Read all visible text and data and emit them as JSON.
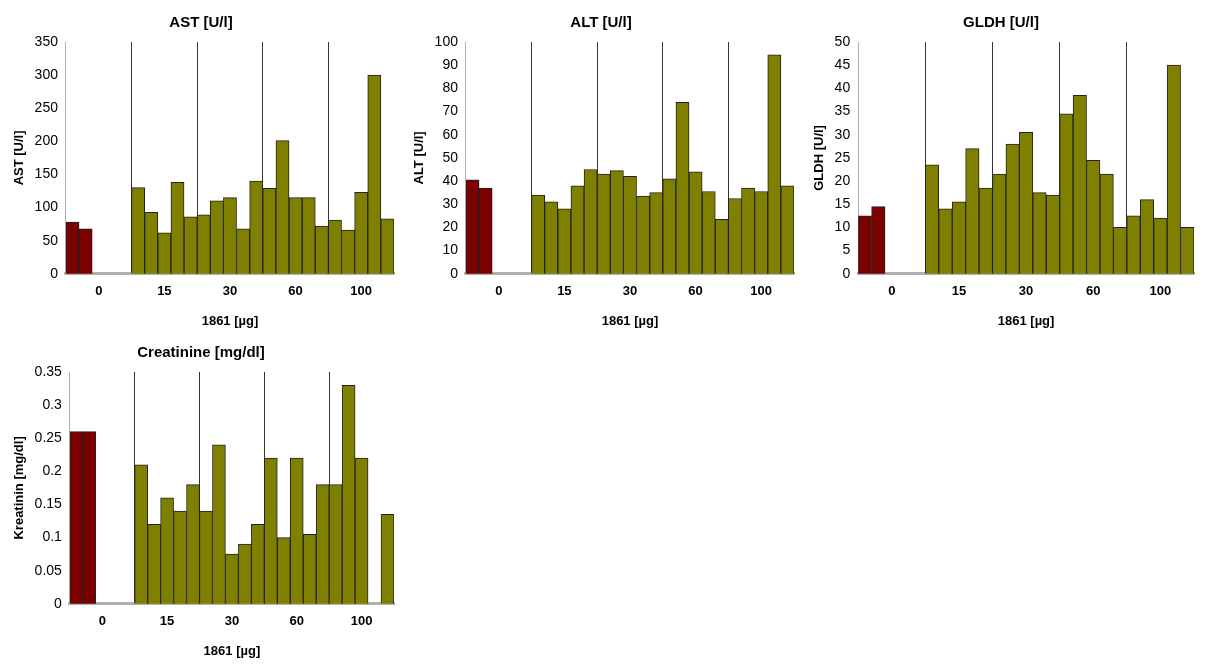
{
  "chart_data": [
    {
      "type": "bar",
      "title": "AST [U/l]",
      "xlabel": "1861 [µg]",
      "ylabel": "AST [U/l]",
      "categories": [
        null,
        null,
        "0",
        null,
        null,
        null,
        null,
        "15",
        null,
        null,
        null,
        null,
        "30",
        null,
        null,
        null,
        null,
        "60",
        null,
        null,
        null,
        null,
        "100",
        null,
        null
      ],
      "values": [
        78,
        68,
        null,
        null,
        null,
        130,
        93,
        62,
        138,
        86,
        89,
        110,
        115,
        68,
        140,
        129,
        201,
        115,
        115,
        72,
        81,
        66,
        123,
        300,
        83
      ],
      "colors": [
        "#7b0000",
        "#7b0000",
        "#7b0000",
        "#7b0000",
        "#7b0000",
        "#808000",
        "#808000",
        "#808000",
        "#808000",
        "#808000",
        "#808000",
        "#808000",
        "#808000",
        "#808000",
        "#808000",
        "#808000",
        "#808000",
        "#808000",
        "#808000",
        "#808000",
        "#808000",
        "#808000",
        "#808000",
        "#808000",
        "#808000"
      ],
      "ylim": [
        0,
        350
      ],
      "yticks": [
        0,
        50,
        100,
        150,
        200,
        250,
        300,
        350
      ]
    },
    {
      "type": "bar",
      "title": "ALT [U/l]",
      "xlabel": "1861 [µg]",
      "ylabel": "ALT [U/l]",
      "categories": [
        null,
        null,
        "0",
        null,
        null,
        null,
        null,
        "15",
        null,
        null,
        null,
        null,
        "30",
        null,
        null,
        null,
        null,
        "60",
        null,
        null,
        null,
        null,
        "100",
        null,
        null
      ],
      "values": [
        40.5,
        37,
        null,
        null,
        null,
        34,
        31,
        28,
        38,
        45,
        43,
        44.5,
        42,
        33.5,
        35,
        41,
        74,
        44,
        35.5,
        23.5,
        32.5,
        37,
        35.5,
        94.5,
        38
      ],
      "colors": [
        "#7b0000",
        "#7b0000",
        "#7b0000",
        "#7b0000",
        "#7b0000",
        "#808000",
        "#808000",
        "#808000",
        "#808000",
        "#808000",
        "#808000",
        "#808000",
        "#808000",
        "#808000",
        "#808000",
        "#808000",
        "#808000",
        "#808000",
        "#808000",
        "#808000",
        "#808000",
        "#808000",
        "#808000",
        "#808000",
        "#808000"
      ],
      "ylim": [
        0,
        100
      ],
      "yticks": [
        0,
        10,
        20,
        30,
        40,
        50,
        60,
        70,
        80,
        90,
        100
      ]
    },
    {
      "type": "bar",
      "title": "GLDH [U/l]",
      "xlabel": "1861 [µg]",
      "ylabel": "GLDH [U/l]",
      "categories": [
        null,
        null,
        "0",
        null,
        null,
        null,
        null,
        "15",
        null,
        null,
        null,
        null,
        "30",
        null,
        null,
        null,
        null,
        "60",
        null,
        null,
        null,
        null,
        "100",
        null,
        null
      ],
      "values": [
        12.5,
        14.5,
        null,
        null,
        null,
        23.5,
        14,
        15.5,
        27,
        18.5,
        21.5,
        28,
        30.5,
        17.5,
        17,
        34.5,
        38.5,
        24.5,
        21.5,
        10,
        12.5,
        16,
        12,
        45,
        10
      ],
      "colors": [
        "#7b0000",
        "#7b0000",
        "#7b0000",
        "#7b0000",
        "#7b0000",
        "#808000",
        "#808000",
        "#808000",
        "#808000",
        "#808000",
        "#808000",
        "#808000",
        "#808000",
        "#808000",
        "#808000",
        "#808000",
        "#808000",
        "#808000",
        "#808000",
        "#808000",
        "#808000",
        "#808000",
        "#808000",
        "#808000",
        "#808000"
      ],
      "ylim": [
        0,
        50
      ],
      "yticks": [
        0,
        5,
        10,
        15,
        20,
        25,
        30,
        35,
        40,
        45,
        50
      ]
    },
    {
      "type": "bar",
      "title": "Creatinine [mg/dl]",
      "xlabel": "1861 [µg]",
      "ylabel": "Kreatinin [mg/dl]",
      "categories": [
        null,
        null,
        "0",
        null,
        null,
        null,
        null,
        "15",
        null,
        null,
        null,
        null,
        "30",
        null,
        null,
        null,
        null,
        "60",
        null,
        null,
        null,
        null,
        "100",
        null,
        null
      ],
      "values": [
        0.26,
        0.26,
        null,
        null,
        null,
        0.21,
        0.12,
        0.16,
        0.14,
        0.18,
        0.14,
        0.24,
        0.075,
        0.09,
        0.12,
        0.22,
        0.1,
        0.22,
        0.105,
        0.18,
        0.18,
        0.33,
        0.22,
        null,
        0.135
      ],
      "colors": [
        "#7b0000",
        "#7b0000",
        "#7b0000",
        "#7b0000",
        "#7b0000",
        "#808000",
        "#808000",
        "#808000",
        "#808000",
        "#808000",
        "#808000",
        "#808000",
        "#808000",
        "#808000",
        "#808000",
        "#808000",
        "#808000",
        "#808000",
        "#808000",
        "#808000",
        "#808000",
        "#808000",
        "#808000",
        "#808000",
        "#808000"
      ],
      "ylim": [
        0,
        0.35
      ],
      "yticks": [
        0,
        0.05,
        0.1,
        0.15,
        0.2,
        0.25,
        0.3,
        0.35
      ]
    }
  ]
}
